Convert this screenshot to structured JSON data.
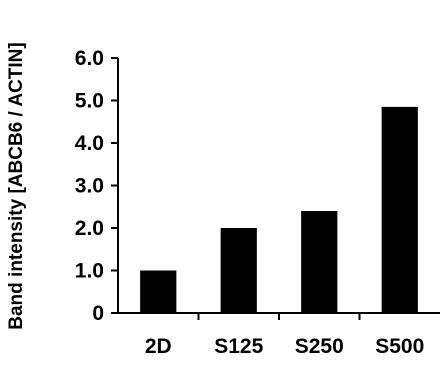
{
  "chart_data": {
    "type": "bar",
    "categories": [
      "2D",
      "S125",
      "S250",
      "S500"
    ],
    "values": [
      1.0,
      2.0,
      2.4,
      4.85
    ],
    "title": "",
    "xlabel": "",
    "ylabel": "Band intensity [ABCB6 / ACTIN]",
    "ylim": [
      0,
      6
    ],
    "yticks": [
      "0",
      "1.0",
      "2.0",
      "3.0",
      "4.0",
      "5.0",
      "6.0"
    ],
    "grid": false,
    "bar_color": "#000000"
  }
}
